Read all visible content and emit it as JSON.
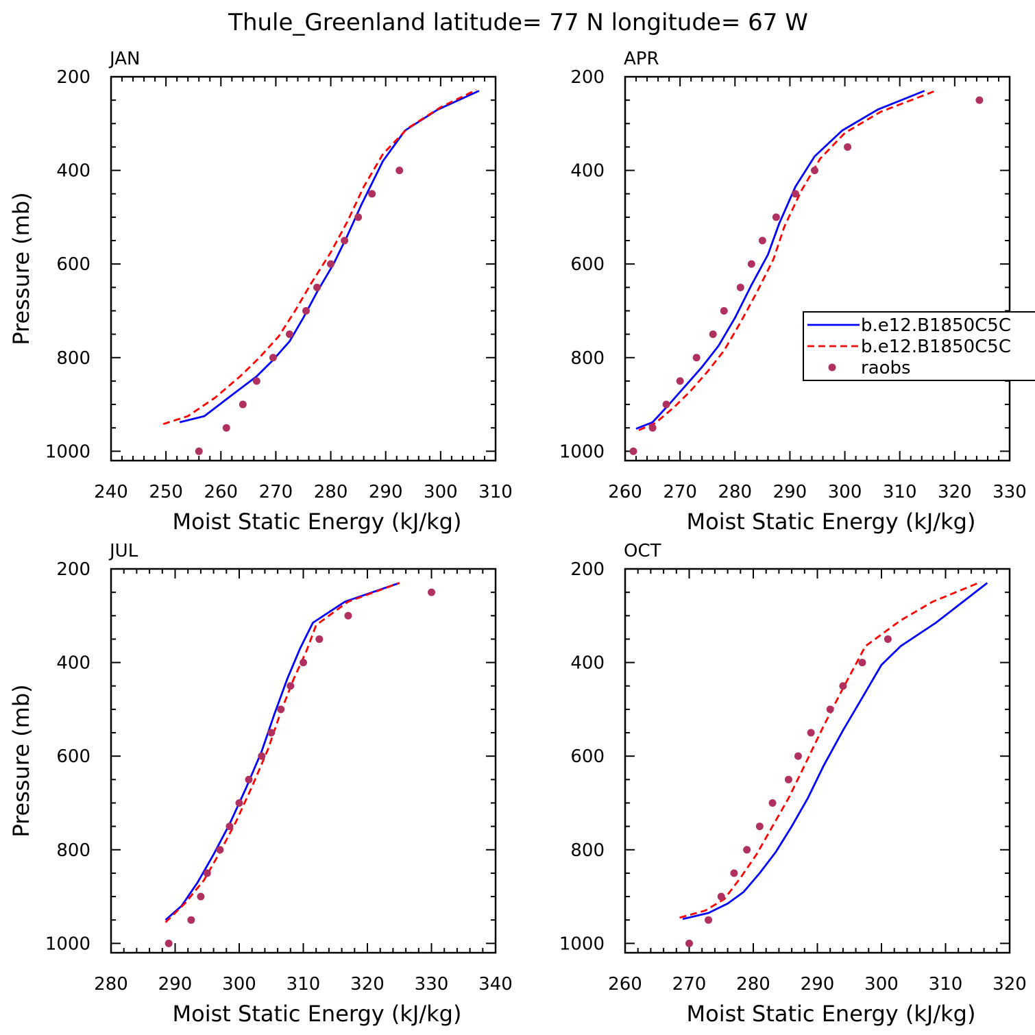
{
  "figure": {
    "title": "Thule_Greenland  latitude= 77 N longitude= 67 W"
  },
  "colors": {
    "control": "#0000ff",
    "experiment": "#ff0000",
    "raobs": "#b03060"
  },
  "legend": {
    "entries": [
      "b.e12.B1850C5C",
      "b.e12.B1850C5C",
      "raobs"
    ]
  },
  "chart_data": [
    {
      "type": "line",
      "title": "JAN",
      "xlabel": "Moist Static Energy (kJ/kg)",
      "ylabel": "Pressure (mb)",
      "xlim": [
        240,
        310
      ],
      "ylim": [
        1000,
        200
      ],
      "xticks": [
        240,
        250,
        260,
        270,
        280,
        290,
        300,
        310
      ],
      "yticks": [
        200,
        400,
        600,
        800,
        1000
      ],
      "grid": false,
      "series": [
        {
          "name": "b.e12.B1850C5C",
          "style": "solid",
          "x": [
            252.5,
            257,
            262,
            266.5,
            269.5,
            272.5,
            275,
            277.5,
            280.5,
            283,
            285.5,
            289.5,
            293.5,
            299.5,
            307
          ],
          "y": [
            938,
            925,
            880,
            840,
            805,
            765,
            715,
            660,
            600,
            540,
            475,
            380,
            315,
            270,
            230
          ]
        },
        {
          "name": "b.e12.B1850C5C",
          "style": "dashed",
          "x": [
            249.5,
            254,
            259,
            263.5,
            267,
            270.5,
            273.5,
            276.5,
            280,
            283,
            286,
            289.5,
            294,
            300,
            306.5
          ],
          "y": [
            942,
            925,
            885,
            840,
            800,
            755,
            700,
            640,
            575,
            510,
            435,
            365,
            310,
            265,
            228
          ]
        },
        {
          "name": "raobs",
          "style": "marker",
          "x": [
            256,
            261,
            264,
            266.5,
            269.5,
            272.5,
            275.5,
            277.5,
            280,
            282.5,
            285,
            287.5,
            292.5
          ],
          "y": [
            1000,
            950,
            900,
            850,
            800,
            750,
            700,
            650,
            600,
            550,
            500,
            450,
            400
          ]
        }
      ]
    },
    {
      "type": "line",
      "title": "APR",
      "xlabel": "Moist Static Energy (kJ/kg)",
      "ylabel": "",
      "xlim": [
        260,
        330
      ],
      "ylim": [
        1000,
        200
      ],
      "xticks": [
        260,
        270,
        280,
        290,
        300,
        310,
        320,
        330
      ],
      "yticks": [
        200,
        400,
        600,
        800,
        1000
      ],
      "grid": false,
      "legend": "right",
      "series": [
        {
          "name": "b.e12.B1850C5C",
          "style": "solid",
          "x": [
            262,
            265,
            268,
            271,
            274,
            277,
            280,
            283,
            286,
            288,
            291,
            294.5,
            299.5,
            306,
            314.5
          ],
          "y": [
            952,
            938,
            900,
            860,
            820,
            775,
            715,
            645,
            580,
            515,
            435,
            370,
            315,
            270,
            230
          ]
        },
        {
          "name": "b.e12.B1850C5C",
          "style": "dashed",
          "x": [
            262.5,
            265.5,
            269,
            272,
            275,
            278,
            281,
            284,
            287,
            289,
            292,
            295.5,
            300,
            306.5,
            316.5
          ],
          "y": [
            955,
            940,
            905,
            870,
            830,
            785,
            725,
            660,
            590,
            520,
            445,
            375,
            320,
            275,
            230
          ]
        },
        {
          "name": "raobs",
          "style": "marker",
          "x": [
            261.5,
            265,
            267.5,
            270,
            273,
            276,
            278,
            281,
            283,
            285,
            287.5,
            291,
            294.5,
            300.5,
            324.5
          ],
          "y": [
            1000,
            950,
            900,
            850,
            800,
            750,
            700,
            650,
            600,
            550,
            500,
            450,
            400,
            350,
            250
          ]
        }
      ]
    },
    {
      "type": "line",
      "title": "JUL",
      "xlabel": "Moist Static Energy (kJ/kg)",
      "ylabel": "Pressure (mb)",
      "xlim": [
        280,
        340
      ],
      "ylim": [
        1000,
        200
      ],
      "xticks": [
        280,
        290,
        300,
        310,
        320,
        330,
        340
      ],
      "yticks": [
        200,
        400,
        600,
        800,
        1000
      ],
      "grid": false,
      "series": [
        {
          "name": "b.e12.B1850C5C",
          "style": "solid",
          "x": [
            288.5,
            291,
            293.5,
            296,
            298.5,
            301,
            303.5,
            305.5,
            307.5,
            309.5,
            311.5,
            316.5,
            325
          ],
          "y": [
            950,
            920,
            870,
            810,
            745,
            670,
            590,
            510,
            435,
            370,
            315,
            270,
            230
          ]
        },
        {
          "name": "b.e12.B1850C5C",
          "style": "dashed",
          "x": [
            288.5,
            291.5,
            294.5,
            297,
            299.5,
            302,
            304.5,
            306.5,
            308.5,
            310.5,
            312,
            317,
            325
          ],
          "y": [
            955,
            915,
            865,
            805,
            740,
            665,
            585,
            505,
            435,
            375,
            320,
            270,
            230
          ]
        },
        {
          "name": "raobs",
          "style": "marker",
          "x": [
            289,
            292.5,
            294,
            295,
            297,
            298.5,
            300,
            301.5,
            303.5,
            305,
            306.5,
            308,
            310,
            312.5,
            317,
            330
          ],
          "y": [
            1000,
            950,
            900,
            850,
            800,
            750,
            700,
            650,
            600,
            550,
            500,
            450,
            400,
            350,
            300,
            250
          ]
        }
      ]
    },
    {
      "type": "line",
      "title": "OCT",
      "xlabel": "Moist Static Energy (kJ/kg)",
      "ylabel": "",
      "xlim": [
        260,
        320
      ],
      "ylim": [
        1000,
        200
      ],
      "xticks": [
        260,
        270,
        280,
        290,
        300,
        310,
        320
      ],
      "yticks": [
        200,
        400,
        600,
        800,
        1000
      ],
      "grid": false,
      "series": [
        {
          "name": "b.e12.B1850C5C",
          "style": "solid",
          "x": [
            269,
            273,
            276,
            278.5,
            281,
            283.5,
            286,
            288.5,
            291,
            294,
            297,
            300,
            303,
            308.5,
            316.5
          ],
          "y": [
            948,
            935,
            915,
            890,
            850,
            805,
            750,
            690,
            620,
            545,
            475,
            405,
            365,
            315,
            230
          ]
        },
        {
          "name": "b.e12.B1850C5C",
          "style": "dashed",
          "x": [
            268.5,
            272.5,
            275.5,
            278,
            280.5,
            283,
            285.5,
            288,
            291,
            294,
            297.5,
            303,
            308,
            315.5
          ],
          "y": [
            945,
            930,
            905,
            860,
            810,
            750,
            690,
            620,
            535,
            455,
            365,
            310,
            270,
            228
          ]
        },
        {
          "name": "raobs",
          "style": "marker",
          "x": [
            270,
            273,
            275,
            277,
            279,
            281,
            283,
            285.5,
            287,
            289,
            292,
            294,
            297,
            301
          ],
          "y": [
            1000,
            950,
            900,
            850,
            800,
            750,
            700,
            650,
            600,
            550,
            500,
            450,
            400,
            350
          ]
        }
      ]
    }
  ]
}
